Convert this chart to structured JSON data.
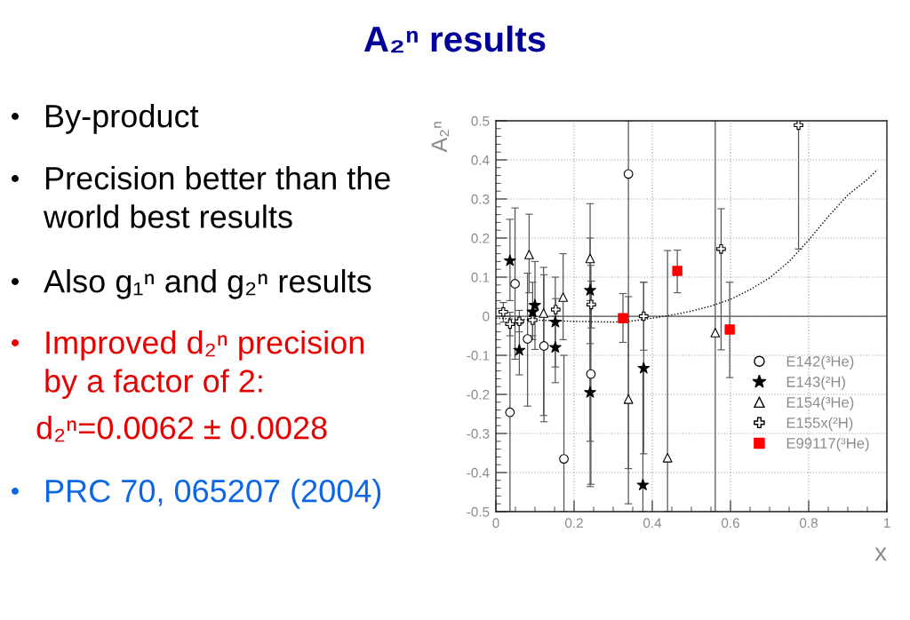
{
  "chart_data": {
    "type": "scatter",
    "title": "A₂ⁿ results",
    "xlabel": "x",
    "ylabel": "A₂ⁿ",
    "xlim": [
      0,
      1
    ],
    "ylim": [
      -0.5,
      0.5
    ],
    "xticks": [
      0,
      0.2,
      0.4,
      0.6,
      0.8,
      1
    ],
    "yticks": [
      -0.5,
      -0.4,
      -0.3,
      -0.2,
      -0.1,
      0,
      0.1,
      0.2,
      0.3,
      0.4,
      0.5
    ],
    "grid": true,
    "legend": "bottom right",
    "ref_lines": [
      {
        "axis": "y",
        "value": 0,
        "color": "#555555"
      }
    ],
    "series": [
      {
        "name": "E142(³He)",
        "marker": "circle",
        "color": "#000000",
        "x": [
          0.036,
          0.049,
          0.081,
          0.123,
          0.174,
          0.243,
          0.339
        ],
        "values": [
          -0.246,
          0.083,
          -0.058,
          -0.076,
          -0.365,
          -0.148,
          0.364
        ],
        "errors": [
          [
            -0.5,
            0.0
          ],
          [
            -0.11,
            0.277
          ],
          [
            -0.23,
            0.11
          ],
          [
            -0.27,
            0.106
          ],
          [
            -0.5,
            -0.1
          ],
          [
            -0.43,
            0.13
          ],
          [
            -0.48,
            0.5
          ]
        ]
      },
      {
        "name": "E143(²H)",
        "marker": "star",
        "color": "#000000",
        "x": [
          0.036,
          0.06,
          0.094,
          0.1,
          0.152,
          0.152,
          0.241,
          0.241,
          0.378,
          0.376
        ],
        "values": [
          0.142,
          -0.087,
          0.011,
          0.028,
          -0.015,
          -0.08,
          0.066,
          -0.195,
          -0.133,
          -0.432
        ],
        "errors": [
          [
            0.04,
            0.248
          ],
          [
            -0.15,
            -0.02
          ],
          [
            -0.06,
            0.087
          ],
          [
            -0.085,
            0.14
          ],
          [
            -0.13,
            0.1
          ],
          [
            -0.17,
            0.0
          ],
          [
            -0.07,
            0.2
          ],
          [
            -0.436,
            0.04
          ],
          [
            -0.352,
            0.087
          ],
          [
            -0.5,
            -0.13
          ]
        ]
      },
      {
        "name": "E154(³He)",
        "marker": "triangle",
        "color": "#000000",
        "x": [
          0.085,
          0.122,
          0.172,
          0.241,
          0.339,
          0.439,
          0.561
        ],
        "values": [
          0.158,
          0.008,
          0.049,
          0.148,
          -0.212,
          -0.362,
          -0.042
        ],
        "errors": [
          [
            0.06,
            0.261
          ],
          [
            -0.254,
            0.125
          ],
          [
            -0.06,
            0.16
          ],
          [
            -0.32,
            0.288
          ],
          [
            -0.39,
            0.05
          ],
          [
            -0.5,
            0.168
          ],
          [
            -0.5,
            0.5
          ]
        ]
      },
      {
        "name": "E155x(²H)",
        "marker": "cross",
        "color": "#000000",
        "x": [
          0.019,
          0.036,
          0.06,
          0.094,
          0.153,
          0.244,
          0.378,
          0.576,
          0.774
        ],
        "values": [
          0.011,
          -0.02,
          -0.013,
          -0.01,
          0.017,
          0.03,
          0.0,
          0.172,
          0.489
        ],
        "errors": [
          [
            -0.015,
            0.035
          ],
          [
            -0.05,
            0.01
          ],
          [
            -0.04,
            0.015
          ],
          [
            -0.05,
            0.03
          ],
          [
            -0.01,
            0.045
          ],
          [
            -0.03,
            0.09
          ],
          [
            -0.087,
            0.087
          ],
          [
            -0.086,
            0.275
          ],
          [
            0.172,
            0.5
          ]
        ]
      },
      {
        "name": "E99117(³He)",
        "marker": "square",
        "color": "#ff0000",
        "x": [
          0.325,
          0.464,
          0.598
        ],
        "values": [
          -0.005,
          0.116,
          -0.034
        ],
        "errors": [
          [
            -0.067,
            0.058
          ],
          [
            0.06,
            0.169
          ],
          [
            -0.157,
            0.087
          ]
        ]
      },
      {
        "type": "line",
        "marker": "none",
        "line_style": "dotted",
        "color": "#000000",
        "x": [
          0,
          0.1,
          0.2,
          0.3,
          0.35,
          0.4,
          0.45,
          0.5,
          0.55,
          0.6,
          0.65,
          0.7,
          0.75,
          0.8,
          0.85,
          0.9,
          0.95,
          0.976
        ],
        "values": [
          -0.005,
          -0.01,
          -0.013,
          -0.015,
          -0.012,
          -0.005,
          0.003,
          0.013,
          0.026,
          0.043,
          0.068,
          0.098,
          0.14,
          0.195,
          0.255,
          0.31,
          0.35,
          0.375
        ]
      }
    ],
    "annotations": [
      "By-product",
      "Precision better than the\nworld best results",
      "Also g₁ⁿ and g₂ⁿ results",
      "Improved d₂ⁿ precision\nby a factor of 2:",
      "d₂ⁿ=0.0062 ± 0.0028",
      "PRC 70, 065207 (2004)"
    ]
  }
}
